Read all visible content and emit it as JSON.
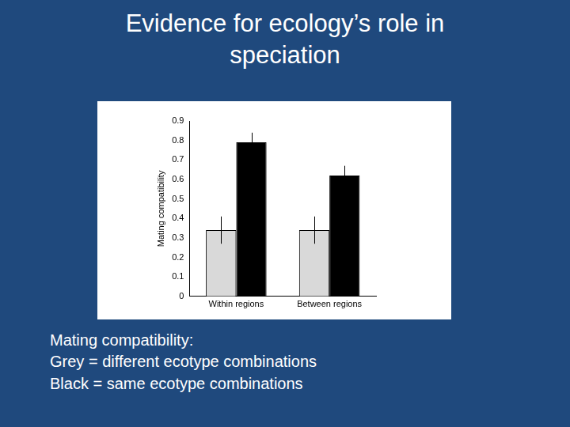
{
  "slide": {
    "title": "Evidence for ecology’s role in speciation",
    "caption": [
      "Mating compatibility:",
      "Grey = different ecotype combinations",
      "Black = same ecotype combinations"
    ]
  },
  "chart_data": {
    "type": "bar",
    "y_label": "Mating compatibility",
    "categories": [
      "Within regions",
      "Between regions"
    ],
    "series": [
      {
        "color": "#d9d9d9",
        "values": [
          0.34,
          0.34
        ],
        "errors": [
          0.07,
          0.07
        ]
      },
      {
        "color": "#000000",
        "values": [
          0.79,
          0.62
        ],
        "errors": [
          0.05,
          0.05
        ]
      }
    ],
    "ylim": [
      0,
      0.9
    ],
    "yticks": [
      0,
      0.1,
      0.2,
      0.3,
      0.4,
      0.5,
      0.6,
      0.7,
      0.8,
      0.9
    ],
    "grid": false
  }
}
